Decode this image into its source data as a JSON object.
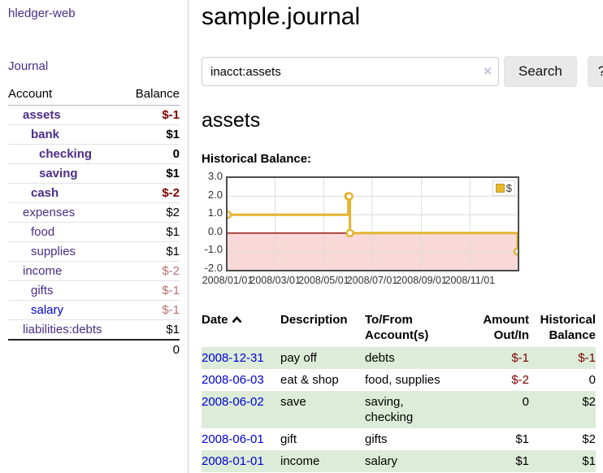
{
  "colors": {
    "purple": "#4b2d87",
    "blue": "#0000d0",
    "negative_dark": "#800000",
    "negative_light": "#b87070",
    "stripe_green": "#dcecd8",
    "chart_line": "#e3b431",
    "chart_negative_bg": "#f9d8d8",
    "zero_line": "#8b0000"
  },
  "sidebar": {
    "brand": "hledger-web",
    "nav_journal": "Journal",
    "columns": {
      "account": "Account",
      "balance": "Balance"
    },
    "accounts": [
      {
        "label": "assets",
        "indent": 1,
        "bold": true,
        "label_color": "#4b2d87",
        "amount": "$-1",
        "amount_color": "#800000"
      },
      {
        "label": "bank",
        "indent": 2,
        "bold": true,
        "label_color": "#4b2d87",
        "amount": "$1",
        "amount_color": "#000000"
      },
      {
        "label": "checking",
        "indent": 3,
        "bold": true,
        "label_color": "#4b2d87",
        "amount": "0",
        "amount_color": "#000000"
      },
      {
        "label": "saving",
        "indent": 3,
        "bold": true,
        "label_color": "#4b2d87",
        "amount": "$1",
        "amount_color": "#000000"
      },
      {
        "label": "cash",
        "indent": 2,
        "bold": true,
        "label_color": "#4b2d87",
        "amount": "$-2",
        "amount_color": "#800000"
      },
      {
        "label": "expenses",
        "indent": 1,
        "bold": false,
        "label_color": "#4b2d87",
        "amount": "$2",
        "amount_color": "#000000"
      },
      {
        "label": "food",
        "indent": 2,
        "bold": false,
        "label_color": "#4b2d87",
        "amount": "$1",
        "amount_color": "#000000"
      },
      {
        "label": "supplies",
        "indent": 2,
        "bold": false,
        "label_color": "#4b2d87",
        "amount": "$1",
        "amount_color": "#000000"
      },
      {
        "label": "income",
        "indent": 1,
        "bold": false,
        "label_color": "#4b2d87",
        "amount": "$-2",
        "amount_color": "#b87070"
      },
      {
        "label": "gifts",
        "indent": 2,
        "bold": false,
        "label_color": "#4b2d87",
        "amount": "$-1",
        "amount_color": "#b87070"
      },
      {
        "label": "salary",
        "indent": 2,
        "bold": false,
        "label_color": "#0000d0",
        "amount": "$-1",
        "amount_color": "#b87070"
      },
      {
        "label": "liabilities:debts",
        "indent": 1,
        "bold": false,
        "label_color": "#4b2d87",
        "amount": "$1",
        "amount_color": "#000000"
      }
    ],
    "total": "0"
  },
  "header": {
    "title": "sample.journal"
  },
  "search": {
    "value": "inacct:assets",
    "clear_icon": "×",
    "button_label": "Search",
    "help_label": "?"
  },
  "main": {
    "account_heading": "assets",
    "chart_label": "Historical Balance:"
  },
  "chart_data": {
    "type": "line",
    "step": true,
    "title": "Historical Balance:",
    "series": [
      {
        "name": "$",
        "points": [
          [
            "2008-01-01",
            1
          ],
          [
            "2008-06-01",
            2
          ],
          [
            "2008-06-02",
            2
          ],
          [
            "2008-06-03",
            0
          ],
          [
            "2008-12-31",
            -1
          ]
        ]
      }
    ],
    "xlim": [
      "2008-01-01",
      "2008-12-31"
    ],
    "ylim": [
      -2,
      3
    ],
    "yticks": [
      3,
      2,
      1,
      0,
      -1,
      -2
    ],
    "xticks": [
      "2008/01/01",
      "2008/03/01",
      "2008/05/01",
      "2008/07/01",
      "2008/09/01",
      "2008/11/01"
    ],
    "legend_position": "top-right",
    "grid": true,
    "line_color": "#e3b431",
    "negative_region_color": "#f9d8d8",
    "zero_line_color": "#8b0000"
  },
  "register": {
    "columns": [
      {
        "l1": "Date",
        "l2": ""
      },
      {
        "l1": "Description",
        "l2": ""
      },
      {
        "l1": "To/From",
        "l2": "Account(s)"
      },
      {
        "l1": "Amount",
        "l2": "Out/In"
      },
      {
        "l1": "Historical",
        "l2": "Balance"
      }
    ],
    "rows": [
      {
        "date": "2008-12-31",
        "description": "pay off",
        "accounts": "debts",
        "amount": "$-1",
        "amount_color": "#800000",
        "balance": "$-1",
        "balance_color": "#800000",
        "striped": true
      },
      {
        "date": "2008-06-03",
        "description": "eat & shop",
        "accounts": "food, supplies",
        "amount": "$-2",
        "amount_color": "#800000",
        "balance": "0",
        "balance_color": "#000000",
        "striped": false
      },
      {
        "date": "2008-06-02",
        "description": "save",
        "accounts": "saving, checking",
        "amount": "0",
        "amount_color": "#000000",
        "balance": "$2",
        "balance_color": "#000000",
        "striped": true
      },
      {
        "date": "2008-06-01",
        "description": "gift",
        "accounts": "gifts",
        "amount": "$1",
        "amount_color": "#000000",
        "balance": "$2",
        "balance_color": "#000000",
        "striped": false
      },
      {
        "date": "2008-01-01",
        "description": "income",
        "accounts": "salary",
        "amount": "$1",
        "amount_color": "#000000",
        "balance": "$1",
        "balance_color": "#000000",
        "striped": true
      }
    ]
  }
}
